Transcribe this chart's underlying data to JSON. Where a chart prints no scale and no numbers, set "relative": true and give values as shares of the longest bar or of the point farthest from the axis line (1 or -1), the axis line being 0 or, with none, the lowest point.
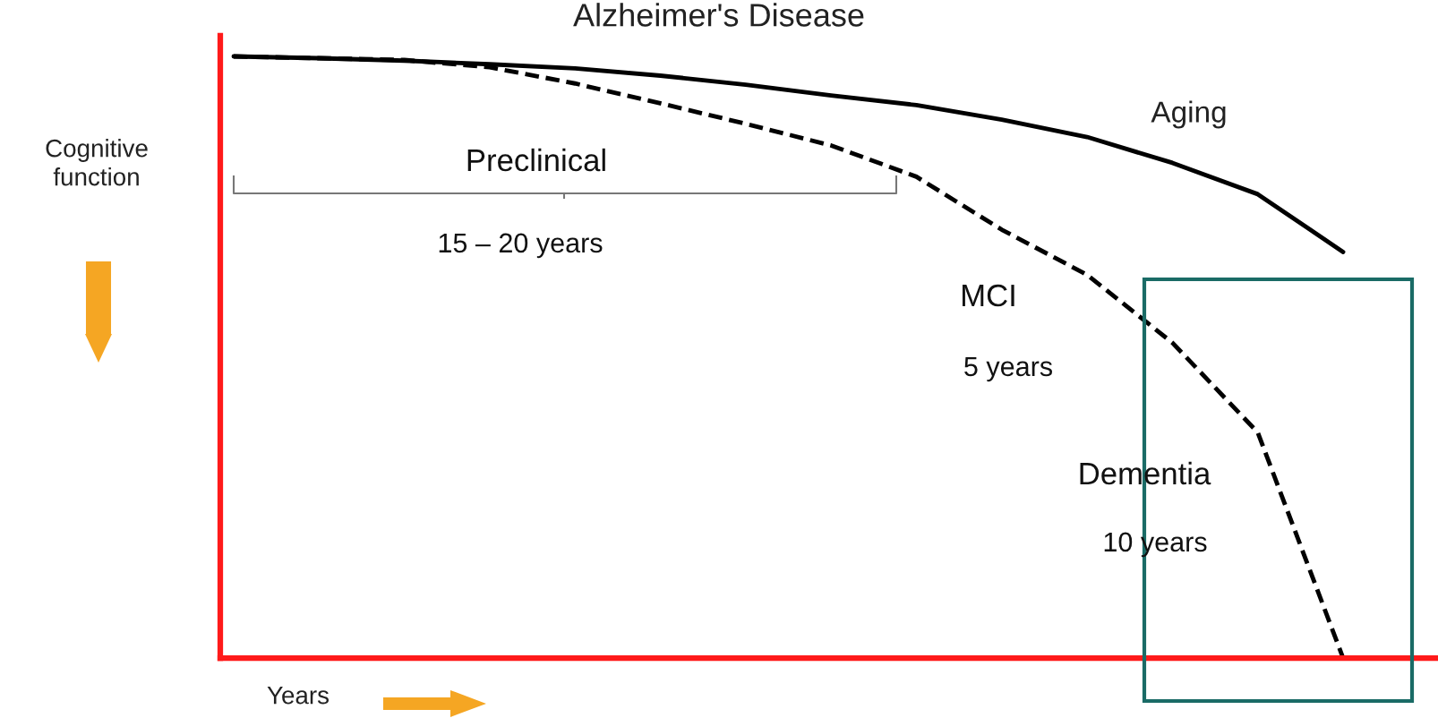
{
  "chart_data": {
    "type": "line",
    "title": "Alzheimer's Disease",
    "xlabel": "Years",
    "ylabel": "Cognitive\nfunction",
    "relative": true,
    "categories": [
      null,
      null,
      null,
      null,
      null,
      null,
      null,
      null,
      null,
      null,
      null,
      null,
      null,
      null
    ],
    "series": [
      {
        "name": "Aging",
        "color": "#000000",
        "line_style": "solid",
        "values": [
          1.0,
          0.997,
          0.993,
          0.987,
          0.98,
          0.968,
          0.953,
          0.935,
          0.919,
          0.895,
          0.866,
          0.823,
          0.771,
          0.675
        ]
      },
      {
        "color": "#000000",
        "line_style": "dashed",
        "values": [
          1.0,
          0.997,
          0.994,
          0.982,
          0.955,
          0.922,
          0.888,
          0.852,
          0.8,
          0.712,
          0.637,
          0.524,
          0.375,
          0.0
        ]
      }
    ],
    "annotations": [
      "Preclinical",
      "15 – 20 years",
      "MCI",
      "5 years",
      "Dementia",
      "10 years"
    ],
    "legend": false,
    "marker": "none"
  }
}
